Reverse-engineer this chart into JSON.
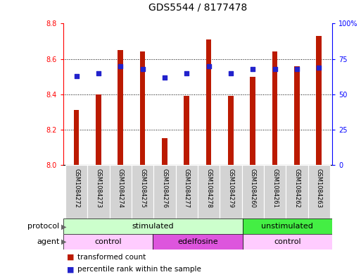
{
  "title": "GDS5544 / 8177478",
  "samples": [
    "GSM1084272",
    "GSM1084273",
    "GSM1084274",
    "GSM1084275",
    "GSM1084276",
    "GSM1084277",
    "GSM1084278",
    "GSM1084279",
    "GSM1084260",
    "GSM1084261",
    "GSM1084262",
    "GSM1084263"
  ],
  "transformed_count": [
    8.31,
    8.4,
    8.65,
    8.64,
    8.15,
    8.39,
    8.71,
    8.39,
    8.5,
    8.64,
    8.56,
    8.73
  ],
  "percentile_rank": [
    63,
    65,
    70,
    68,
    62,
    65,
    70,
    65,
    68,
    68,
    68,
    69
  ],
  "y_min": 8.0,
  "y_max": 8.8,
  "y_ticks_left": [
    8.0,
    8.2,
    8.4,
    8.6,
    8.8
  ],
  "y_ticks_right": [
    0,
    25,
    50,
    75,
    100
  ],
  "bar_color": "#bb1a00",
  "dot_color": "#2222cc",
  "bar_width": 0.25,
  "protocol_groups": [
    {
      "label": "stimulated",
      "start": 0,
      "end": 8,
      "color": "#ccffcc"
    },
    {
      "label": "unstimulated",
      "start": 8,
      "end": 12,
      "color": "#44ee44"
    }
  ],
  "agent_groups": [
    {
      "label": "control",
      "start": 0,
      "end": 4,
      "color": "#ffccff"
    },
    {
      "label": "edelfosine",
      "start": 4,
      "end": 8,
      "color": "#dd55dd"
    },
    {
      "label": "control",
      "start": 8,
      "end": 12,
      "color": "#ffccff"
    }
  ],
  "legend_bar_color": "#bb1a00",
  "legend_dot_color": "#2222cc",
  "legend_label_bar": "transformed count",
  "legend_label_dot": "percentile rank within the sample",
  "bg_color": "#ffffff",
  "title_fontsize": 10,
  "tick_fontsize": 7,
  "sample_fontsize": 6,
  "row_fontsize": 8,
  "legend_fontsize": 7.5
}
